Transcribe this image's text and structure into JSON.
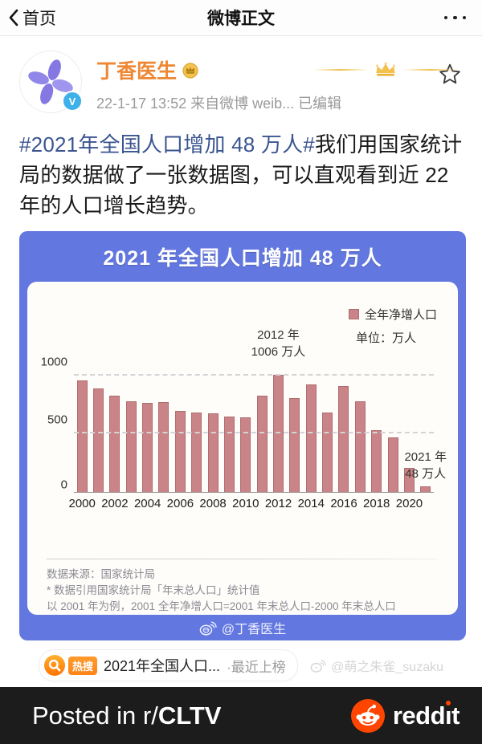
{
  "nav": {
    "back_label": "首页",
    "title": "微博正文"
  },
  "post": {
    "author": {
      "name": "丁香医生",
      "timestamp": "22-1-17 13:52",
      "source": "来自微博 weib...",
      "edited_label": "已编辑",
      "verified_badge": "V"
    },
    "content": {
      "hashtag": "#2021年全国人口增加 48 万人#",
      "body": "我们用国家统计局的数据做了一张数据图，可以直观看到近 22 年的人口增长趋势。"
    }
  },
  "chart_image": {
    "title": "2021 年全国人口增加 48 万人",
    "legend_label": "全年净增人口",
    "unit_label": "单位：万人",
    "annotation_2012": [
      "2012 年",
      "1006 万人"
    ],
    "annotation_2021": [
      "2021 年",
      "48 万人"
    ],
    "footer": [
      "数据来源：国家统计局",
      "* 数据引用国家统计局「年末总人口」统计值",
      "以 2001 年为例，2001 全年净增人口=2001 年末总人口-2000 年末总人口"
    ],
    "credit": "@丁香医生"
  },
  "chart_data": {
    "type": "bar",
    "title": "2021 年全国人口增加 48 万人",
    "series_name": "全年净增人口",
    "unit": "万人",
    "categories": [
      2000,
      2001,
      2002,
      2003,
      2004,
      2005,
      2006,
      2007,
      2008,
      2009,
      2010,
      2011,
      2012,
      2013,
      2014,
      2015,
      2016,
      2017,
      2018,
      2019,
      2020,
      2021
    ],
    "values": [
      957,
      884,
      826,
      774,
      761,
      768,
      692,
      681,
      673,
      648,
      641,
      825,
      1006,
      804,
      920,
      680,
      906,
      779,
      530,
      467,
      204,
      48
    ],
    "x_tick_labels": [
      "2000",
      "2002",
      "2004",
      "2006",
      "2008",
      "2010",
      "2012",
      "2014",
      "2016",
      "2018",
      "2020"
    ],
    "y_ticks": [
      0,
      500,
      1000
    ],
    "ylim": [
      0,
      1100
    ],
    "grid": "dashed-horizontal",
    "legend_position": "top-right",
    "bar_color": "#ca8487"
  },
  "trending": {
    "badge": "热搜",
    "text": "2021年全国人口...",
    "suffix": "·最近上榜"
  },
  "watermark": "@萌之朱雀_suzaku",
  "banner": {
    "posted_in": "Posted in r/",
    "subreddit": "CLTV",
    "brand_head": "redd",
    "brand_i": "ı",
    "brand_tail": "t"
  },
  "colors": {
    "frame-blue": "#6277df",
    "bar-fill": "#ca8487",
    "bar-edge": "#ad6d71",
    "hashtag-blue": "#3a5590",
    "weibo-orange": "#ee8733",
    "trend-orange": "#ff8519",
    "reddit-orange": "#ff4500",
    "banner-bg": "#1c1c1c"
  }
}
